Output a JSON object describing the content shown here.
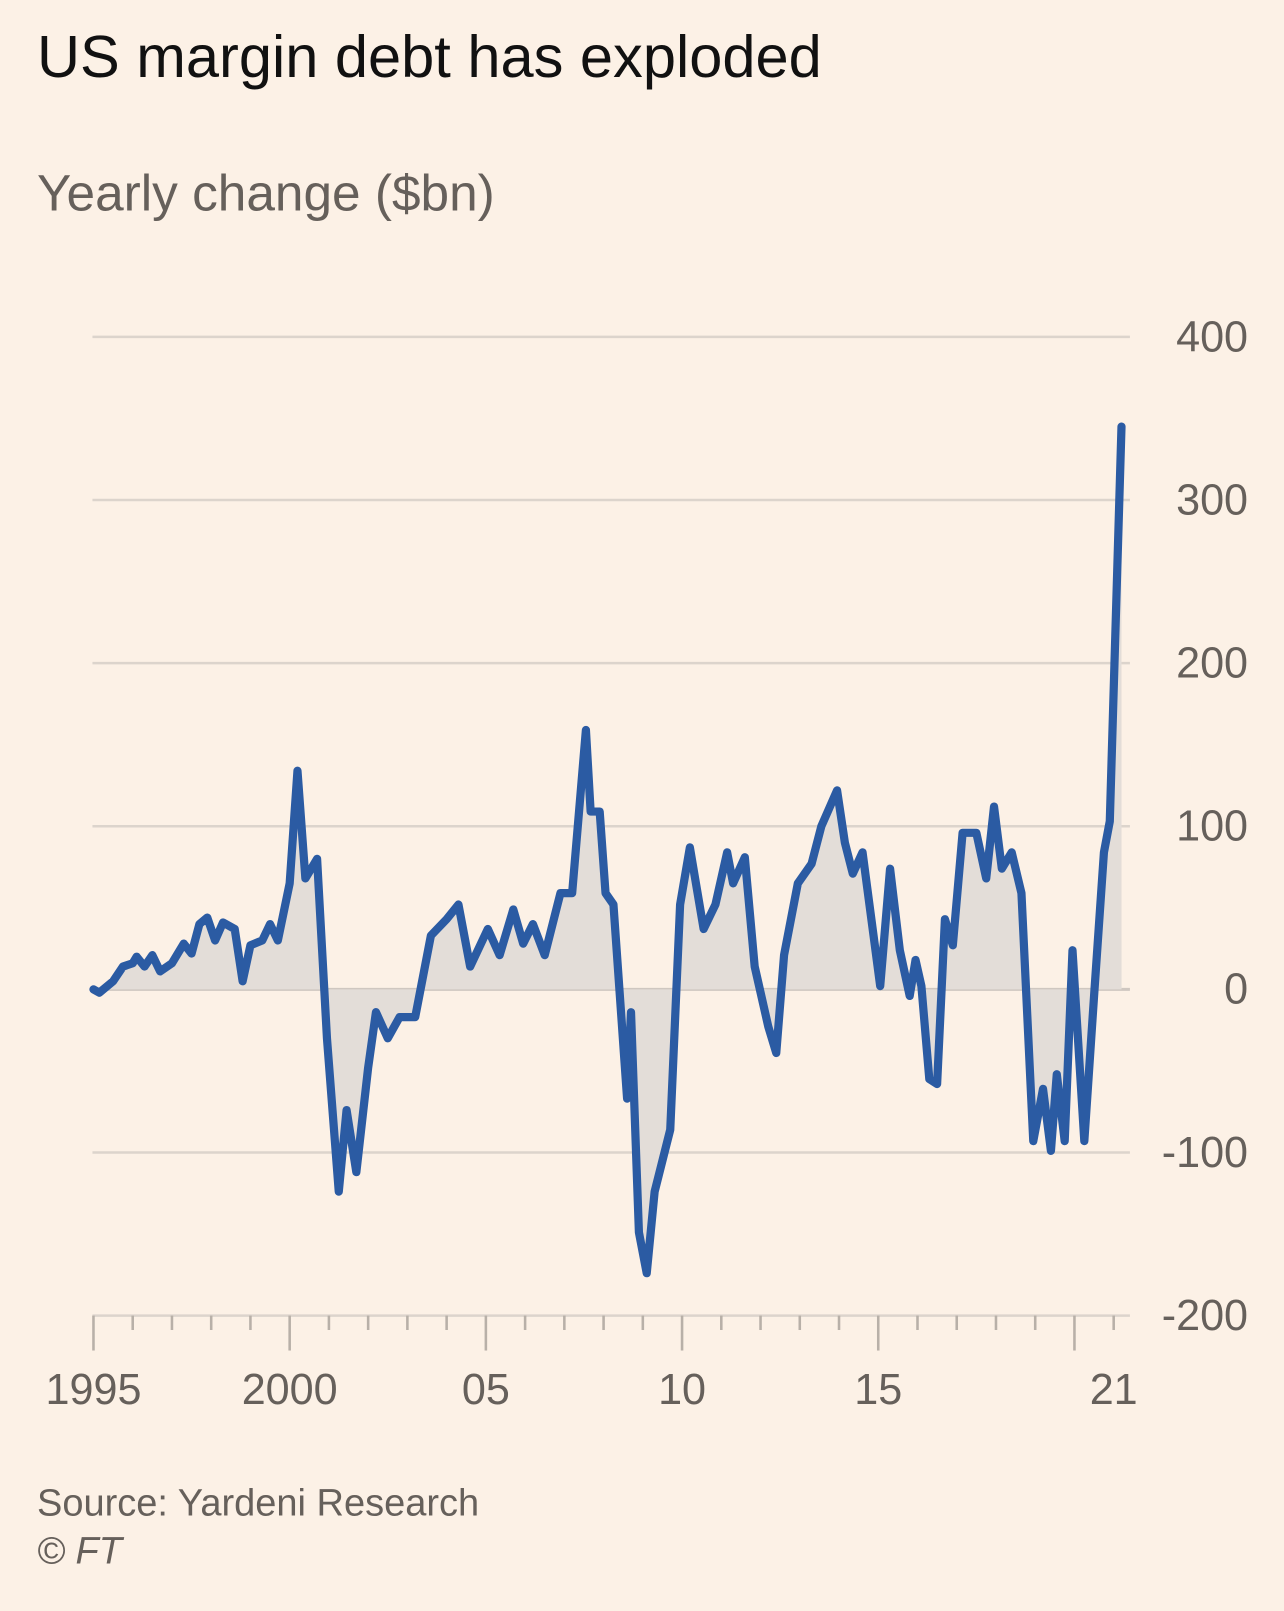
{
  "colors": {
    "background": "#fcf1e6",
    "line": "#2b5ba3",
    "fill": "#e3ddd8",
    "grid": "#dcd4cc",
    "text": "#66605b"
  },
  "source": "Source: Yardeni Research",
  "copyright": "© FT",
  "chart_data": {
    "type": "line",
    "title": "US margin debt has exploded",
    "subtitle": "Yearly change ($bn)",
    "xlabel": "",
    "ylabel": "Yearly change ($bn)",
    "xlim": [
      1995,
      2021.3
    ],
    "ylim": [
      -200,
      400
    ],
    "grid": true,
    "area_fill_to_zero": true,
    "y_ticks": [
      {
        "value": 400,
        "label": "400"
      },
      {
        "value": 300,
        "label": "300"
      },
      {
        "value": 200,
        "label": "200"
      },
      {
        "value": 100,
        "label": "100"
      },
      {
        "value": 0,
        "label": "0"
      },
      {
        "value": -100,
        "label": "-100"
      },
      {
        "value": -200,
        "label": "-200"
      }
    ],
    "x_ticks": [
      {
        "value": 1995,
        "label": "1995"
      },
      {
        "value": 2000,
        "label": "2000"
      },
      {
        "value": 2005,
        "label": "05"
      },
      {
        "value": 2010,
        "label": "10"
      },
      {
        "value": 2015,
        "label": "15"
      },
      {
        "value": 2021,
        "label": "21"
      }
    ],
    "x_major_ticks": [
      1995,
      2000,
      2005,
      2010,
      2015,
      2020
    ],
    "series": [
      {
        "name": "US margin debt, yearly change ($bn)",
        "points": [
          [
            1995.0,
            0
          ],
          [
            1995.15,
            -2
          ],
          [
            1995.5,
            5
          ],
          [
            1995.75,
            14
          ],
          [
            1996.0,
            16
          ],
          [
            1996.1,
            20
          ],
          [
            1996.3,
            14
          ],
          [
            1996.5,
            21
          ],
          [
            1996.7,
            11
          ],
          [
            1997.0,
            16
          ],
          [
            1997.3,
            28
          ],
          [
            1997.5,
            22
          ],
          [
            1997.7,
            40
          ],
          [
            1997.9,
            44
          ],
          [
            1998.1,
            30
          ],
          [
            1998.3,
            41
          ],
          [
            1998.6,
            37
          ],
          [
            1998.8,
            5
          ],
          [
            1999.0,
            27
          ],
          [
            1999.3,
            30
          ],
          [
            1999.5,
            40
          ],
          [
            1999.7,
            30
          ],
          [
            2000.0,
            65
          ],
          [
            2000.2,
            134
          ],
          [
            2000.4,
            68
          ],
          [
            2000.7,
            80
          ],
          [
            2000.95,
            -30
          ],
          [
            2001.25,
            -124
          ],
          [
            2001.45,
            -74
          ],
          [
            2001.7,
            -112
          ],
          [
            2002.0,
            -48
          ],
          [
            2002.2,
            -14
          ],
          [
            2002.5,
            -30
          ],
          [
            2002.8,
            -17
          ],
          [
            2003.2,
            -17
          ],
          [
            2003.6,
            33
          ],
          [
            2004.0,
            43
          ],
          [
            2004.3,
            52
          ],
          [
            2004.6,
            14
          ],
          [
            2005.05,
            37
          ],
          [
            2005.35,
            21
          ],
          [
            2005.7,
            49
          ],
          [
            2005.95,
            28
          ],
          [
            2006.2,
            40
          ],
          [
            2006.5,
            21
          ],
          [
            2006.9,
            59
          ],
          [
            2007.2,
            59
          ],
          [
            2007.55,
            159
          ],
          [
            2007.67,
            109
          ],
          [
            2007.9,
            109
          ],
          [
            2008.05,
            59
          ],
          [
            2008.25,
            52
          ],
          [
            2008.6,
            -67
          ],
          [
            2008.7,
            -14
          ],
          [
            2008.9,
            -149
          ],
          [
            2009.1,
            -174
          ],
          [
            2009.3,
            -124
          ],
          [
            2009.7,
            -86
          ],
          [
            2009.95,
            52
          ],
          [
            2010.2,
            87
          ],
          [
            2010.55,
            37
          ],
          [
            2010.85,
            52
          ],
          [
            2011.15,
            84
          ],
          [
            2011.3,
            65
          ],
          [
            2011.6,
            81
          ],
          [
            2011.85,
            14
          ],
          [
            2012.2,
            -23
          ],
          [
            2012.4,
            -39
          ],
          [
            2012.6,
            21
          ],
          [
            2012.95,
            65
          ],
          [
            2013.3,
            77
          ],
          [
            2013.55,
            100
          ],
          [
            2013.95,
            122
          ],
          [
            2014.15,
            90
          ],
          [
            2014.35,
            71
          ],
          [
            2014.6,
            84
          ],
          [
            2015.05,
            2
          ],
          [
            2015.3,
            74
          ],
          [
            2015.55,
            24
          ],
          [
            2015.8,
            -4
          ],
          [
            2015.95,
            18
          ],
          [
            2016.1,
            2
          ],
          [
            2016.3,
            -55
          ],
          [
            2016.5,
            -58
          ],
          [
            2016.7,
            43
          ],
          [
            2016.9,
            27
          ],
          [
            2017.15,
            96
          ],
          [
            2017.5,
            96
          ],
          [
            2017.75,
            68
          ],
          [
            2017.95,
            112
          ],
          [
            2018.15,
            74
          ],
          [
            2018.4,
            84
          ],
          [
            2018.65,
            59
          ],
          [
            2018.95,
            -93
          ],
          [
            2019.2,
            -61
          ],
          [
            2019.4,
            -99
          ],
          [
            2019.55,
            -52
          ],
          [
            2019.75,
            -93
          ],
          [
            2019.95,
            24
          ],
          [
            2020.25,
            -93
          ],
          [
            2020.5,
            -4
          ],
          [
            2020.75,
            84
          ],
          [
            2020.9,
            103
          ],
          [
            2021.2,
            345
          ]
        ]
      }
    ]
  }
}
